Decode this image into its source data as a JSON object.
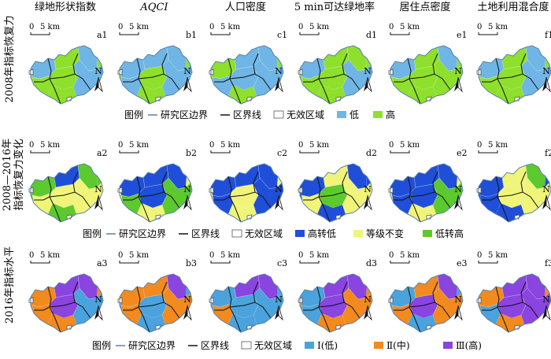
{
  "columns": [
    {
      "title": "绿地形状指数",
      "italic": false
    },
    {
      "title": "AQCI",
      "italic": true
    },
    {
      "title": "人口密度",
      "italic": false
    },
    {
      "title": "5 min可达绿地率",
      "italic": false
    },
    {
      "title": "居住点密度",
      "italic": false
    },
    {
      "title": "土地利用混合度",
      "italic": false
    }
  ],
  "rows": [
    {
      "title_lines": [
        "2008年指标恢复力"
      ],
      "panel_labels": [
        "a1",
        "b1",
        "c1",
        "d1",
        "e1",
        "f1"
      ],
      "legend": {
        "label": "图例",
        "study_boundary": "研究区边界",
        "district_line": "区界线",
        "invalid_area": "无效区域",
        "classes": [
          {
            "label": "低",
            "color": "#6fb6e6"
          },
          {
            "label": "高",
            "color": "#8ee02d"
          }
        ]
      },
      "panels": [
        {
          "base": 1,
          "patches": [
            [
              0,
              0
            ],
            [
              2,
              0
            ],
            [
              5,
              0
            ]
          ]
        },
        {
          "base": 1,
          "patches": [
            [
              0,
              0
            ],
            [
              1,
              0
            ],
            [
              2,
              0
            ],
            [
              3,
              0
            ],
            [
              5,
              0
            ]
          ]
        },
        {
          "base": 1,
          "patches": [
            [
              2,
              0
            ],
            [
              3,
              0
            ],
            [
              4,
              0
            ],
            [
              5,
              0
            ],
            [
              1,
              0
            ]
          ]
        },
        {
          "base": 1,
          "patches": [
            [
              0,
              0
            ],
            [
              5,
              0
            ]
          ]
        },
        {
          "base": 1,
          "patches": [
            [
              0,
              0
            ],
            [
              2,
              0
            ]
          ]
        },
        {
          "base": 1,
          "patches": [
            [
              0,
              0
            ],
            [
              2,
              0
            ],
            [
              5,
              0
            ]
          ]
        }
      ]
    },
    {
      "title_lines": [
        "2008—2016年",
        "指标恢复力变化"
      ],
      "panel_labels": [
        "a2",
        "b2",
        "c2",
        "d2",
        "e2",
        "f2"
      ],
      "legend": {
        "label": "图例",
        "study_boundary": "研究区边界",
        "district_line": "区界线",
        "invalid_area": "无效区域",
        "classes": [
          {
            "label": "高转低",
            "color": "#1f4fd8"
          },
          {
            "label": "等级不变",
            "color": "#f0f57a"
          },
          {
            "label": "低转高",
            "color": "#5cc92e"
          }
        ]
      },
      "panels": [
        {
          "base": 2,
          "patches": [
            [
              1,
              1
            ],
            [
              3,
              1
            ],
            [
              4,
              1
            ],
            [
              5,
              1
            ],
            [
              1,
              0
            ]
          ]
        },
        {
          "base": 1,
          "patches": [
            [
              0,
              0
            ],
            [
              1,
              0
            ],
            [
              2,
              0
            ],
            [
              3,
              2
            ],
            [
              5,
              2
            ],
            [
              4,
              0
            ]
          ]
        },
        {
          "base": 1,
          "patches": [
            [
              0,
              0
            ],
            [
              1,
              0
            ],
            [
              2,
              0
            ],
            [
              3,
              0
            ],
            [
              5,
              0
            ]
          ]
        },
        {
          "base": 0,
          "patches": [
            [
              1,
              1
            ],
            [
              3,
              1
            ],
            [
              4,
              2
            ],
            [
              5,
              1
            ]
          ]
        },
        {
          "base": 1,
          "patches": [
            [
              0,
              0
            ],
            [
              1,
              0
            ],
            [
              2,
              0
            ],
            [
              3,
              0
            ],
            [
              4,
              0
            ],
            [
              5,
              2
            ]
          ]
        },
        {
          "base": 0,
          "patches": [
            [
              1,
              1
            ],
            [
              2,
              2
            ],
            [
              4,
              1
            ],
            [
              5,
              1
            ]
          ]
        }
      ]
    },
    {
      "title_lines": [
        "2016年指标水平"
      ],
      "panel_labels": [
        "a3",
        "b3",
        "c3",
        "d3",
        "e3",
        "f3"
      ],
      "legend": {
        "label": "图例",
        "study_boundary": "研究区边界",
        "district_line": "区界线",
        "invalid_area": "无效区域",
        "classes": [
          {
            "label": "Ⅰ(低)",
            "color": "#4aa3dc"
          },
          {
            "label": "Ⅱ(中)",
            "color": "#f28a1e"
          },
          {
            "label": "Ⅲ(高)",
            "color": "#8a44e0"
          }
        ]
      },
      "panels": [
        {
          "base": 1,
          "patches": [
            [
              1,
              2
            ],
            [
              2,
              2
            ],
            [
              4,
              2
            ],
            [
              5,
              0
            ]
          ]
        },
        {
          "base": 0,
          "patches": [
            [
              0,
              1
            ],
            [
              1,
              1
            ],
            [
              2,
              2
            ],
            [
              3,
              1
            ],
            [
              5,
              1
            ]
          ]
        },
        {
          "base": 0,
          "patches": [
            [
              2,
              2
            ],
            [
              3,
              1
            ],
            [
              1,
              2
            ]
          ]
        },
        {
          "base": 1,
          "patches": [
            [
              0,
              0
            ],
            [
              1,
              2
            ],
            [
              2,
              2
            ],
            [
              3,
              0
            ],
            [
              4,
              2
            ]
          ]
        },
        {
          "base": 0,
          "patches": [
            [
              1,
              1
            ],
            [
              2,
              2
            ],
            [
              3,
              1
            ],
            [
              4,
              2
            ],
            [
              5,
              1
            ]
          ]
        },
        {
          "base": 1,
          "patches": [
            [
              1,
              2
            ],
            [
              2,
              2
            ],
            [
              3,
              0
            ],
            [
              4,
              2
            ],
            [
              5,
              2
            ]
          ]
        }
      ]
    }
  ],
  "scale_bar": {
    "zero": "0",
    "label": "5 km"
  },
  "north_label": "N",
  "colors": {
    "boundary": "#5b7fa6",
    "district": "#111111",
    "invalid_fill": "#ffffff",
    "invalid_stroke": "#555555"
  }
}
